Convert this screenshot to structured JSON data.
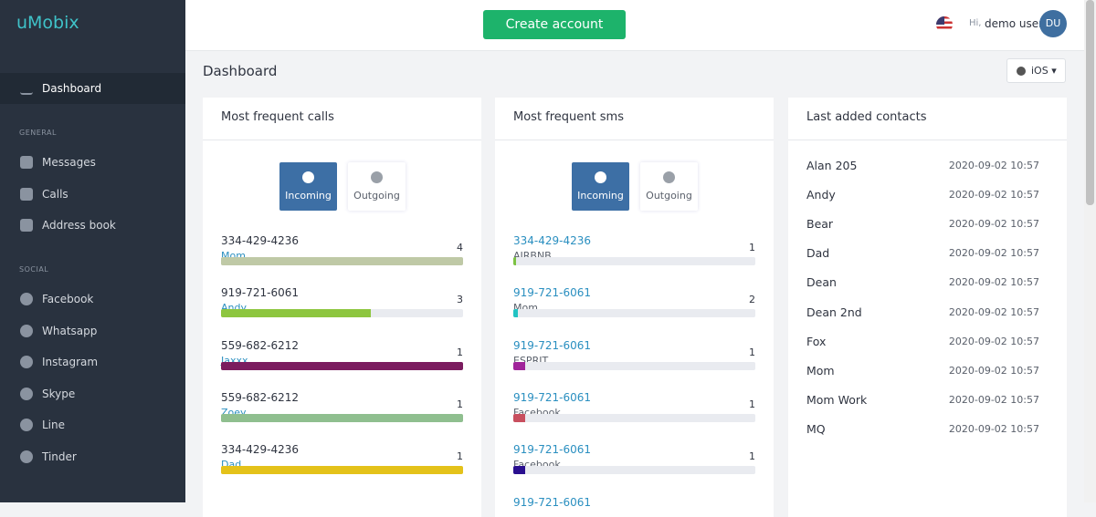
{
  "sidebar": {
    "logo": "uMobix",
    "active": "Dashboard",
    "general_title": "GENERAL",
    "general": [
      "Messages",
      "Calls",
      "Address book"
    ],
    "social_title": "SOCIAL",
    "social": [
      "Facebook",
      "Whatsapp",
      "Instagram",
      "Skype",
      "Line",
      "Tinder"
    ]
  },
  "header": {
    "button": "Create account",
    "greeting": "Hi,",
    "user": "demo user",
    "avatar": "DU"
  },
  "page": {
    "title": "Dashboard",
    "platform": "iOS"
  },
  "calls": {
    "title": "Most frequent calls",
    "tabs": [
      "Incoming",
      "Outgoing"
    ],
    "items": [
      {
        "number": "334-429-4236",
        "name": "Mom",
        "count": 4,
        "fill": 100,
        "color": "#bfc9a6"
      },
      {
        "number": "919-721-6061",
        "name": "Andy",
        "count": 3,
        "fill": 62,
        "color": "#8dc63f"
      },
      {
        "number": "559-682-6212",
        "name": "Jaxxx",
        "count": 1,
        "fill": 100,
        "color": "#7b1c5f"
      },
      {
        "number": "559-682-6212",
        "name": "Zoey",
        "count": 1,
        "fill": 100,
        "color": "#8fbf8f"
      },
      {
        "number": "334-429-4236",
        "name": "Dad",
        "count": 1,
        "fill": 100,
        "color": "#e4c21a"
      }
    ]
  },
  "sms": {
    "title": "Most frequent sms",
    "tabs": [
      "Incoming",
      "Outgoing"
    ],
    "items": [
      {
        "number": "334-429-4236",
        "name": "AIRBNB",
        "count": 1,
        "fill": 1,
        "color": "#7cc242"
      },
      {
        "number": "919-721-6061",
        "name": "Mom",
        "count": 2,
        "fill": 2,
        "color": "#22c3c3"
      },
      {
        "number": "919-721-6061",
        "name": "ESPRIT",
        "count": 1,
        "fill": 5,
        "color": "#a0249a"
      },
      {
        "number": "919-721-6061",
        "name": "Facebook",
        "count": 1,
        "fill": 5,
        "color": "#c84f5e"
      },
      {
        "number": "919-721-6061",
        "name": "Facebook",
        "count": 1,
        "fill": 5,
        "color": "#2a0f8f"
      },
      {
        "number": "919-721-6061"
      }
    ]
  },
  "contacts": {
    "title": "Last added contacts",
    "items": [
      {
        "name": "Alan 205",
        "date": "2020-09-02 10:57"
      },
      {
        "name": "Andy",
        "date": "2020-09-02 10:57"
      },
      {
        "name": "Bear",
        "date": "2020-09-02 10:57"
      },
      {
        "name": "Dad",
        "date": "2020-09-02 10:57"
      },
      {
        "name": "Dean",
        "date": "2020-09-02 10:57"
      },
      {
        "name": "Dean 2nd",
        "date": "2020-09-02 10:57"
      },
      {
        "name": "Fox",
        "date": "2020-09-02 10:57"
      },
      {
        "name": "Mom",
        "date": "2020-09-02 10:57"
      },
      {
        "name": "Mom Work",
        "date": "2020-09-02 10:57"
      },
      {
        "name": "MQ",
        "date": "2020-09-02 10:57"
      }
    ]
  }
}
